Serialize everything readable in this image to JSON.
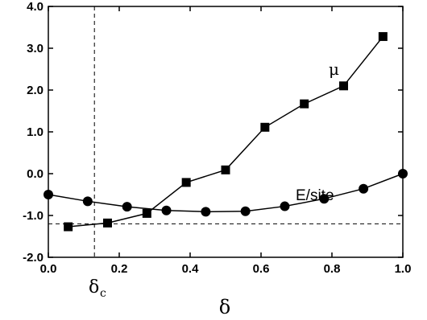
{
  "chart_data": {
    "type": "line",
    "xlabel": "δ",
    "ylabel": "",
    "xlim": [
      0.0,
      1.0
    ],
    "ylim": [
      -2.0,
      4.0
    ],
    "x_ticks": [
      0.0,
      0.2,
      0.4,
      0.6,
      0.8,
      1.0
    ],
    "y_ticks": [
      -2.0,
      -1.0,
      0.0,
      1.0,
      2.0,
      3.0,
      4.0
    ],
    "x_tick_labels": [
      "0.0",
      "0.2",
      "0.4",
      "0.6",
      "0.8",
      "1.0"
    ],
    "y_tick_labels": [
      "-2.0",
      "-1.0",
      "0.0",
      "1.0",
      "2.0",
      "3.0",
      "4.0"
    ],
    "grid": false,
    "legend": "none",
    "series": [
      {
        "name": "μ",
        "marker": "square",
        "x": [
          0.056,
          0.167,
          0.278,
          0.389,
          0.5,
          0.611,
          0.722,
          0.833,
          0.944
        ],
        "y": [
          -1.27,
          -1.18,
          -0.95,
          -0.21,
          0.09,
          1.11,
          1.67,
          2.1,
          3.28
        ]
      },
      {
        "name": "E/site",
        "marker": "circle",
        "x": [
          0.0,
          0.111,
          0.222,
          0.333,
          0.444,
          0.556,
          0.667,
          0.778,
          0.889,
          1.0
        ],
        "y": [
          -0.5,
          -0.66,
          -0.79,
          -0.88,
          -0.91,
          -0.9,
          -0.78,
          -0.6,
          -0.36,
          0.0
        ]
      }
    ],
    "reference_lines": {
      "vertical_x": 0.13,
      "vertical_label": "δ",
      "vertical_label_sub": "c",
      "horizontal_y": -1.2
    }
  }
}
